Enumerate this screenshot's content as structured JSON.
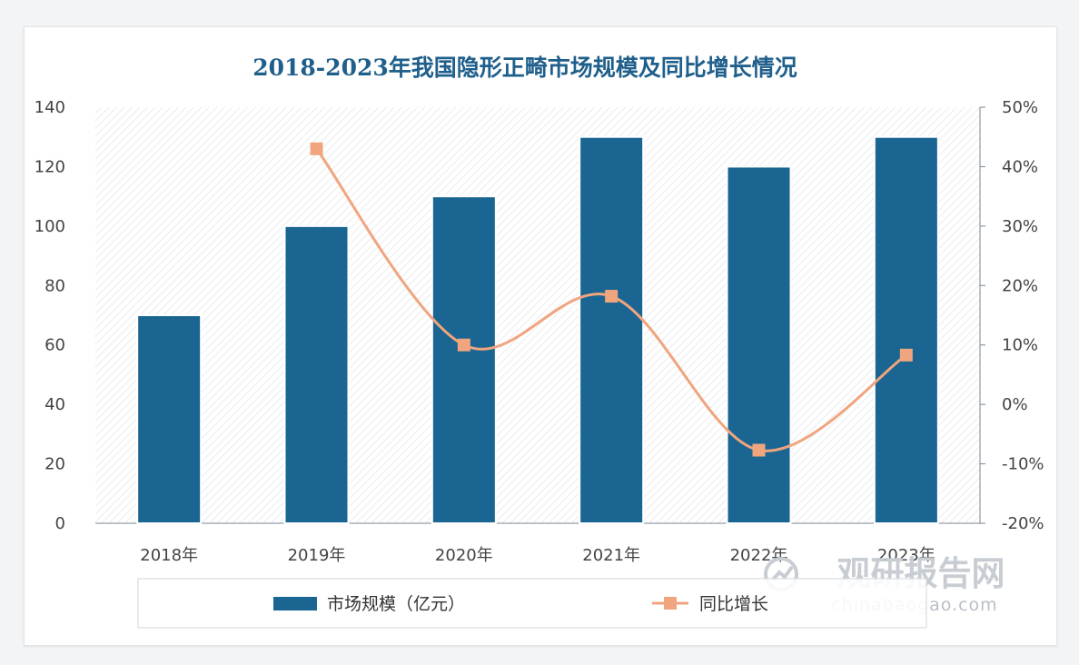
{
  "chart_data": {
    "type": "bar",
    "title": "2018-2023年我国隐形正畸市场规模及同比增长情况",
    "categories": [
      "2018年",
      "2019年",
      "2020年",
      "2021年",
      "2022年",
      "2023年"
    ],
    "series": [
      {
        "name": "市场规模（亿元）",
        "type": "bar",
        "axis": "left",
        "values": [
          70,
          100,
          110,
          130,
          120,
          130
        ]
      },
      {
        "name": "同比增长",
        "type": "line",
        "axis": "right",
        "values": [
          null,
          43,
          10,
          18.2,
          -7.7,
          8.3
        ]
      }
    ],
    "y_left": {
      "min": 0,
      "max": 140,
      "ticks": [
        0,
        20,
        40,
        60,
        80,
        100,
        120,
        140
      ]
    },
    "y_right": {
      "min": -20,
      "max": 50,
      "ticks": [
        "-20%",
        "-10%",
        "0%",
        "10%",
        "20%",
        "30%",
        "40%",
        "50%"
      ]
    },
    "legend_position": "bottom",
    "colors": {
      "bar": "#1a6591",
      "line": "#f0a57f",
      "marker": "#f0a57f",
      "title": "#1f5f8b"
    }
  },
  "watermark": {
    "name": "观研报告网",
    "url": "chinabaogao.com"
  }
}
